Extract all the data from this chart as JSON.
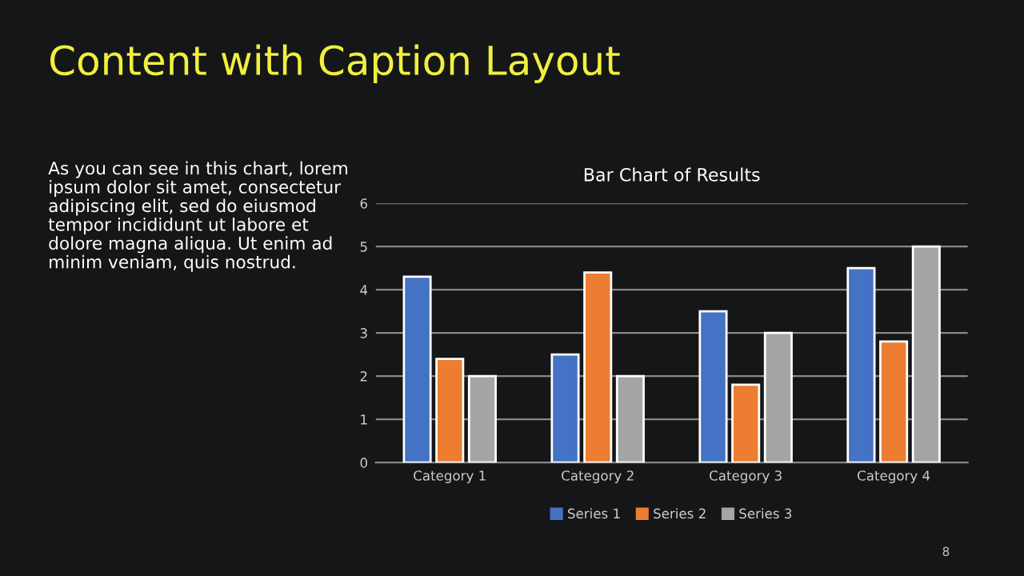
{
  "chart_data": {
    "type": "bar",
    "title": "Bar Chart of Results",
    "categories": [
      "Category 1",
      "Category 2",
      "Category 3",
      "Category 4"
    ],
    "series": [
      {
        "name": "Series 1",
        "color": "#4472c4",
        "values": [
          4.3,
          2.5,
          3.5,
          4.5
        ]
      },
      {
        "name": "Series 2",
        "color": "#ed7d31",
        "values": [
          2.4,
          4.4,
          1.8,
          2.8
        ]
      },
      {
        "name": "Series 3",
        "color": "#a5a5a5",
        "values": [
          2,
          2,
          3,
          5
        ]
      }
    ],
    "ylim": [
      0,
      6
    ],
    "yticks": [
      0,
      1,
      2,
      3,
      4,
      5,
      6
    ],
    "grid": "y",
    "legend": "bottom",
    "annotations": [
      "Content with Caption Layout",
      "As you can see in this chart, lorem\nipsum dolor sit amet, consectetur\nadipiscing elit, sed do eiusmod\ntempor incididunt ut labore et\ndolore magna aliqua. Ut enim ad\nminim veniam, quis nostrud.",
      "8"
    ]
  }
}
